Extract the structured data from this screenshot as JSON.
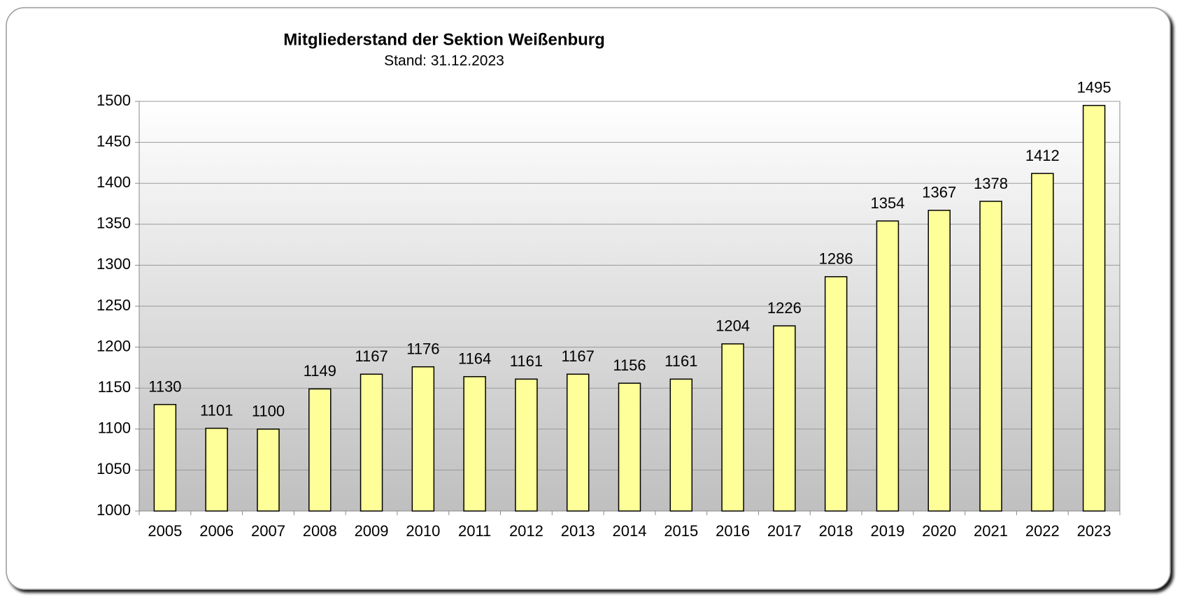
{
  "chart_data": {
    "type": "bar",
    "title": "Mitgliederstand der Sektion Weißenburg",
    "subtitle": "Stand: 31.12.2023",
    "categories": [
      "2005",
      "2006",
      "2007",
      "2008",
      "2009",
      "2010",
      "2011",
      "2012",
      "2013",
      "2014",
      "2015",
      "2016",
      "2017",
      "2018",
      "2019",
      "2020",
      "2021",
      "2022",
      "2023"
    ],
    "values": [
      1130,
      1101,
      1100,
      1149,
      1167,
      1176,
      1164,
      1161,
      1167,
      1156,
      1161,
      1204,
      1226,
      1286,
      1354,
      1367,
      1378,
      1412,
      1495
    ],
    "color": "#ffff99",
    "ylim": [
      1000,
      1500
    ],
    "yticks": [
      1000,
      1050,
      1100,
      1150,
      1200,
      1250,
      1300,
      1350,
      1400,
      1450,
      1500
    ],
    "grid": true
  }
}
